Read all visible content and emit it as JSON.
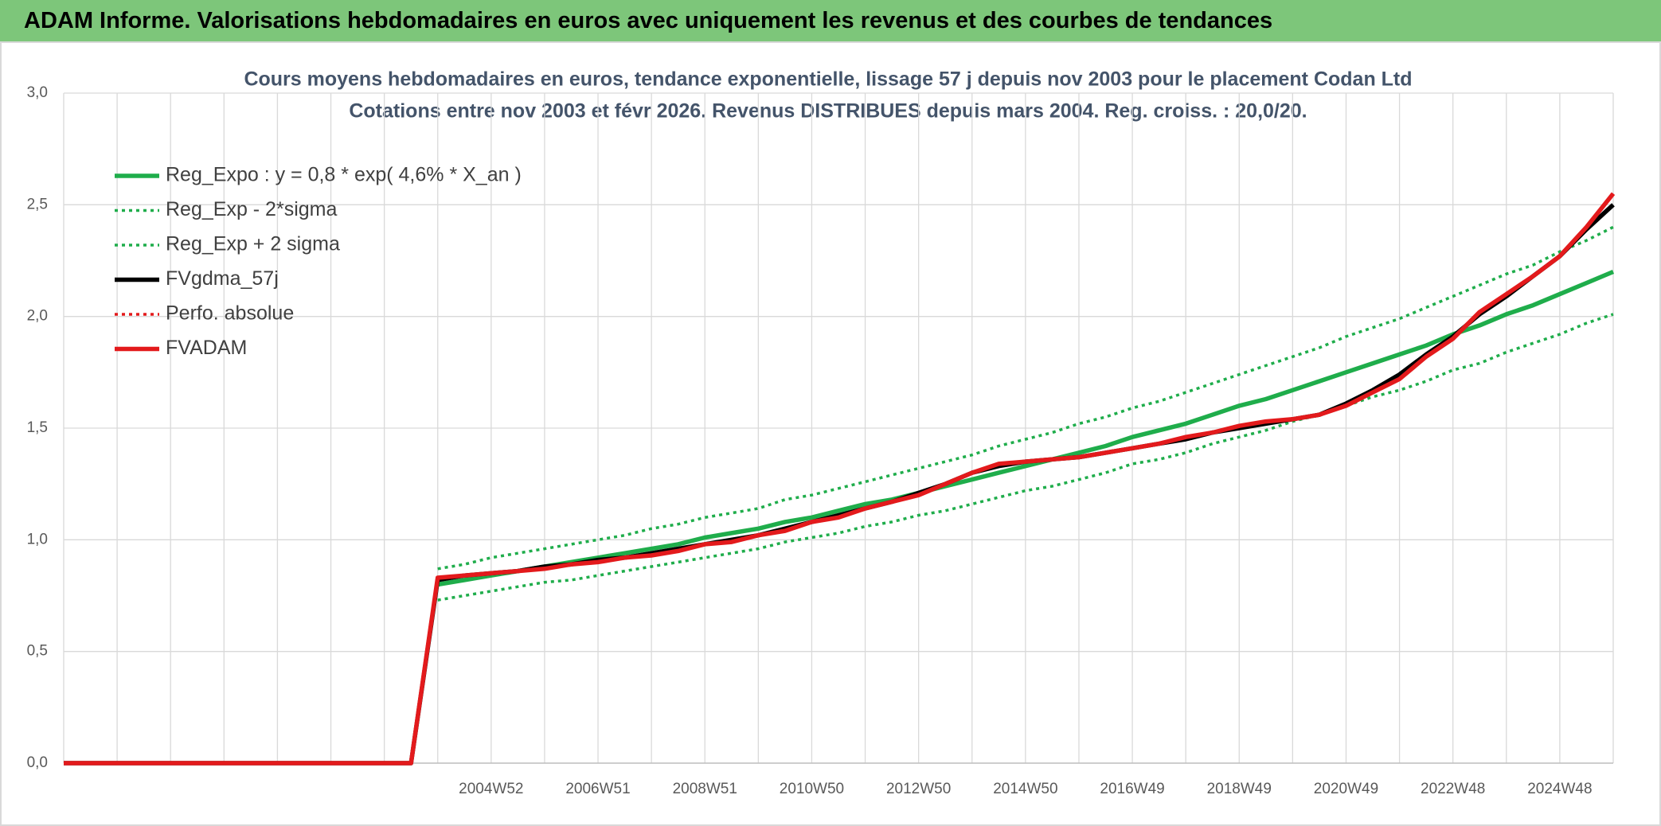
{
  "header": {
    "title": "ADAM Informe. Valorisations hebdomadaires en euros avec uniquement les revenus et des courbes de tendances"
  },
  "chart_data": {
    "type": "line",
    "title": "Cours moyens hebdomadaires en euros, tendance exponentielle, lissage 57 j depuis nov 2003 pour le placement Codan Ltd",
    "subtitle": "Cotations entre nov 2003 et févr 2026. Revenus DISTRIBUES depuis mars 2004. Reg. croiss. : 20,0/20.",
    "categories": [
      null,
      null,
      null,
      null,
      null,
      null,
      null,
      null,
      null,
      null,
      null,
      null,
      null,
      null,
      null,
      null,
      "2004W52",
      null,
      null,
      null,
      "2006W51",
      null,
      null,
      null,
      "2008W51",
      null,
      null,
      null,
      "2010W50",
      null,
      null,
      null,
      "2012W50",
      null,
      null,
      null,
      "2014W50",
      null,
      null,
      null,
      "2016W49",
      null,
      null,
      null,
      "2018W49",
      null,
      null,
      null,
      "2020W49",
      null,
      null,
      null,
      "2022W48",
      null,
      null,
      null,
      "2024W48",
      null,
      null
    ],
    "ylim": [
      0,
      3
    ],
    "yticks": [
      {
        "value": 0,
        "label": "0,0"
      },
      {
        "value": 0.5,
        "label": "0,5"
      },
      {
        "value": 1,
        "label": "1,0"
      },
      {
        "value": 1.5,
        "label": "1,5"
      },
      {
        "value": 2,
        "label": "2,0"
      },
      {
        "value": 2.5,
        "label": "2,5"
      },
      {
        "value": 3,
        "label": "3,0"
      }
    ],
    "grid": true,
    "legend": "upper left",
    "series": [
      {
        "name": "Reg_Expo : y = 0,8 * exp( 4,6% *  X_an )",
        "color": "#1fad4b",
        "style": "solid",
        "values": [
          null,
          null,
          null,
          null,
          null,
          null,
          null,
          null,
          null,
          null,
          null,
          null,
          null,
          null,
          0.8,
          0.82,
          0.84,
          0.86,
          0.88,
          0.9,
          0.92,
          0.94,
          0.96,
          0.98,
          1.01,
          1.03,
          1.05,
          1.08,
          1.1,
          1.13,
          1.16,
          1.18,
          1.21,
          1.24,
          1.27,
          1.3,
          1.33,
          1.36,
          1.39,
          1.42,
          1.46,
          1.49,
          1.52,
          1.56,
          1.6,
          1.63,
          1.67,
          1.71,
          1.75,
          1.79,
          1.83,
          1.87,
          1.92,
          1.96,
          2.01,
          2.05,
          2.1,
          2.15,
          2.2
        ]
      },
      {
        "name": "Reg_Exp - 2*sigma",
        "color": "#1fad4b",
        "style": "dotted",
        "values": [
          null,
          null,
          null,
          null,
          null,
          null,
          null,
          null,
          null,
          null,
          null,
          null,
          null,
          null,
          0.73,
          0.75,
          0.77,
          0.79,
          0.81,
          0.82,
          0.84,
          0.86,
          0.88,
          0.9,
          0.92,
          0.94,
          0.96,
          0.99,
          1.01,
          1.03,
          1.06,
          1.08,
          1.11,
          1.13,
          1.16,
          1.19,
          1.22,
          1.24,
          1.27,
          1.3,
          1.34,
          1.36,
          1.39,
          1.43,
          1.46,
          1.49,
          1.53,
          1.56,
          1.6,
          1.64,
          1.67,
          1.71,
          1.76,
          1.79,
          1.84,
          1.88,
          1.92,
          1.97,
          2.01
        ]
      },
      {
        "name": "Reg_Exp + 2 sigma",
        "color": "#1fad4b",
        "style": "dotted",
        "values": [
          null,
          null,
          null,
          null,
          null,
          null,
          null,
          null,
          null,
          null,
          null,
          null,
          null,
          null,
          0.87,
          0.89,
          0.92,
          0.94,
          0.96,
          0.98,
          1.0,
          1.02,
          1.05,
          1.07,
          1.1,
          1.12,
          1.14,
          1.18,
          1.2,
          1.23,
          1.26,
          1.29,
          1.32,
          1.35,
          1.38,
          1.42,
          1.45,
          1.48,
          1.52,
          1.55,
          1.59,
          1.62,
          1.66,
          1.7,
          1.74,
          1.78,
          1.82,
          1.86,
          1.91,
          1.95,
          1.99,
          2.04,
          2.09,
          2.14,
          2.19,
          2.23,
          2.29,
          2.34,
          2.4
        ]
      },
      {
        "name": "FVgdma_57j",
        "color": "#000000",
        "style": "solid",
        "values": [
          0,
          0,
          0,
          0,
          0,
          0,
          0,
          0,
          0,
          0,
          0,
          0,
          0,
          0,
          0.82,
          0.84,
          0.85,
          0.86,
          0.88,
          0.89,
          0.91,
          0.92,
          0.94,
          0.96,
          0.98,
          1.0,
          1.02,
          1.05,
          1.08,
          1.11,
          1.14,
          1.17,
          1.21,
          1.25,
          1.3,
          1.33,
          1.35,
          1.36,
          1.37,
          1.39,
          1.41,
          1.43,
          1.45,
          1.48,
          1.5,
          1.52,
          1.54,
          1.56,
          1.61,
          1.67,
          1.74,
          1.83,
          1.91,
          2.01,
          2.09,
          2.18,
          2.27,
          2.39,
          2.5
        ]
      },
      {
        "name": "Perfo. absolue",
        "color": "#e31a1c",
        "style": "dotted",
        "values": [
          0,
          0,
          0,
          0,
          0,
          0,
          0,
          0,
          0,
          0,
          0,
          0,
          0,
          0,
          0.83,
          0.84,
          0.85,
          0.86,
          0.87,
          0.89,
          0.9,
          0.92,
          0.93,
          0.95,
          0.98,
          0.99,
          1.02,
          1.04,
          1.08,
          1.1,
          1.14,
          1.17,
          1.2,
          1.25,
          1.3,
          1.34,
          1.35,
          1.36,
          1.37,
          1.39,
          1.41,
          1.43,
          1.46,
          1.48,
          1.51,
          1.53,
          1.54,
          1.56,
          1.6,
          1.66,
          1.72,
          1.82,
          1.9,
          2.02,
          2.1,
          2.18,
          2.27,
          2.4,
          2.55
        ]
      },
      {
        "name": "FVADAM",
        "color": "#e31a1c",
        "style": "solid",
        "values": [
          0,
          0,
          0,
          0,
          0,
          0,
          0,
          0,
          0,
          0,
          0,
          0,
          0,
          0,
          0.83,
          0.84,
          0.85,
          0.86,
          0.87,
          0.89,
          0.9,
          0.92,
          0.93,
          0.95,
          0.98,
          0.99,
          1.02,
          1.04,
          1.08,
          1.1,
          1.14,
          1.17,
          1.2,
          1.25,
          1.3,
          1.34,
          1.35,
          1.36,
          1.37,
          1.39,
          1.41,
          1.43,
          1.46,
          1.48,
          1.51,
          1.53,
          1.54,
          1.56,
          1.6,
          1.66,
          1.72,
          1.82,
          1.9,
          2.02,
          2.1,
          2.18,
          2.27,
          2.4,
          2.55
        ]
      }
    ]
  }
}
